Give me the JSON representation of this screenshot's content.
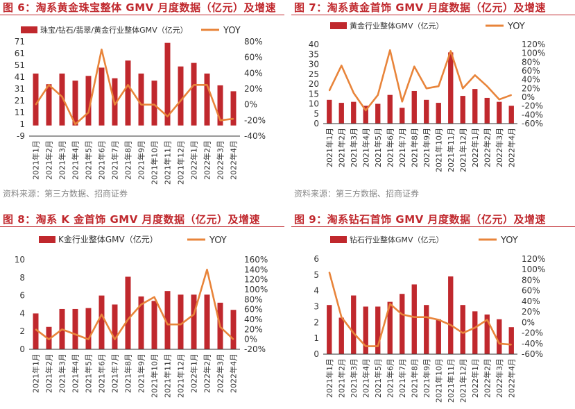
{
  "colors": {
    "bar": "#c0282d",
    "line": "#e8843a",
    "title": "#c0282d",
    "axis": "#333333"
  },
  "charts": [
    {
      "title": "图 6：淘系黄金珠宝整体 GMV 月度数据（亿元）及增速",
      "source": "资料来源：第三方数据、招商证券",
      "chart_data": {
        "type": "bar+line",
        "categories": [
          "2021年1月",
          "2021年2月",
          "2021年3月",
          "2021年4月",
          "2021年5月",
          "2021年6月",
          "2021年7月",
          "2021年8月",
          "2021年9月",
          "2021年10月",
          "2021年11月",
          "2021年12月",
          "2022年1月",
          "2022年2月",
          "2022年3月",
          "2022年4月"
        ],
        "series": [
          {
            "name": "珠宝/钻石/翡翠/黄金行业整体GMV（亿元）",
            "type": "bar",
            "axis": "left",
            "values": [
              44,
              35,
              44,
              38,
              42,
              49,
              40,
              55,
              44,
              38,
              70,
              50,
              53,
              44,
              34,
              29
            ]
          },
          {
            "name": "YOY",
            "type": "line",
            "axis": "right",
            "values": [
              0,
              25,
              10,
              -25,
              -10,
              70,
              0,
              25,
              0,
              0,
              -15,
              5,
              25,
              25,
              -20,
              -18
            ]
          }
        ],
        "yleft": {
          "min": -9,
          "max": 71,
          "ticks": [
            71,
            61,
            51,
            41,
            31,
            21,
            11,
            1,
            -9
          ],
          "labels": [
            "71",
            "61",
            "51",
            "41",
            "31",
            "21",
            "11",
            "1",
            "-9"
          ]
        },
        "yright": {
          "min": -40,
          "max": 80,
          "ticks": [
            80,
            60,
            40,
            20,
            0,
            -20,
            -40
          ],
          "labels": [
            "80%",
            "60%",
            "40%",
            "20%",
            "0%",
            "-20%",
            "-40%"
          ]
        },
        "legend": "top"
      }
    },
    {
      "title": "图 7：淘系黄金首饰 GMV 月度数据（亿元）及增速",
      "source": "资料来源：第三方数据、招商证券",
      "chart_data": {
        "type": "bar+line",
        "categories": [
          "2021年1月",
          "2021年2月",
          "2021年3月",
          "2021年4月",
          "2021年5月",
          "2021年6月",
          "2021年7月",
          "2021年8月",
          "2021年9月",
          "2021年10月",
          "2021年11月",
          "2021年12月",
          "2022年1月",
          "2022年2月",
          "2022年3月",
          "2022年4月"
        ],
        "series": [
          {
            "name": "黄金行业整体GMV（亿元）",
            "type": "bar",
            "axis": "left",
            "values": [
              12,
              10.5,
              11,
              9,
              10,
              14.5,
              8,
              16.5,
              12,
              10.5,
              36,
              14,
              17.5,
              13,
              11,
              9
            ]
          },
          {
            "name": "YOY",
            "type": "line",
            "axis": "right",
            "values": [
              15,
              72,
              10,
              -30,
              5,
              107,
              -10,
              70,
              20,
              25,
              105,
              20,
              50,
              25,
              -5,
              5
            ]
          }
        ],
        "yleft": {
          "min": 0,
          "max": 40,
          "ticks": [
            40,
            35,
            30,
            25,
            20,
            15,
            10,
            5,
            0
          ],
          "labels": [
            "40",
            "35",
            "30",
            "25",
            "20",
            "15",
            "10",
            "5",
            "0"
          ]
        },
        "yright": {
          "min": -60,
          "max": 120,
          "ticks": [
            120,
            100,
            80,
            60,
            40,
            20,
            0,
            -20,
            -40,
            -60
          ],
          "labels": [
            "120%",
            "100%",
            "80%",
            "60%",
            "40%",
            "20%",
            "0%",
            "-20%",
            "-40%",
            "-60%"
          ]
        },
        "legend": "top"
      }
    },
    {
      "title": "图 8：淘系 K 金首饰 GMV 月度数据（亿元）及增速",
      "source": "",
      "chart_data": {
        "type": "bar+line",
        "categories": [
          "2021年1月",
          "2021年2月",
          "2021年3月",
          "2021年4月",
          "2021年5月",
          "2021年6月",
          "2021年7月",
          "2021年8月",
          "2021年9月",
          "2021年10月",
          "2021年11月",
          "2021年12月",
          "2022年1月",
          "2022年2月",
          "2022年3月",
          "2022年4月"
        ],
        "series": [
          {
            "name": "K金行业整体GMV（亿元）",
            "type": "bar",
            "axis": "left",
            "values": [
              4,
              2.5,
              4.5,
              4.5,
              4.6,
              6,
              5,
              8.1,
              5.9,
              5.4,
              6.5,
              6.1,
              6.1,
              6.1,
              5.2,
              4.4
            ]
          },
          {
            "name": "YOY",
            "type": "line",
            "axis": "right",
            "values": [
              20,
              0,
              20,
              10,
              0,
              50,
              0,
              40,
              70,
              85,
              30,
              30,
              50,
              140,
              25,
              0
            ]
          }
        ],
        "yleft": {
          "min": 0,
          "max": 10,
          "ticks": [
            10,
            8,
            6,
            4,
            2,
            0
          ],
          "labels": [
            "10",
            "8",
            "6",
            "4",
            "2",
            "0"
          ]
        },
        "yright": {
          "min": -20,
          "max": 160,
          "ticks": [
            160,
            140,
            120,
            100,
            80,
            60,
            40,
            20,
            0,
            -20
          ],
          "labels": [
            "160%",
            "140%",
            "120%",
            "100%",
            "80%",
            "60%",
            "40%",
            "20%",
            "0%",
            "-20%"
          ]
        },
        "legend": "top"
      }
    },
    {
      "title": "图 9：淘系钻石首饰 GMV 月度数据（亿元）及增速",
      "source": "",
      "chart_data": {
        "type": "bar+line",
        "categories": [
          "2021年1月",
          "2021年2月",
          "2021年3月",
          "2021年4月",
          "2021年5月",
          "2021年6月",
          "2021年7月",
          "2021年8月",
          "2021年9月",
          "2021年10月",
          "2021年11月",
          "2021年12月",
          "2022年1月",
          "2022年2月",
          "2022年3月",
          "2022年4月"
        ],
        "series": [
          {
            "name": "钻石行业整体GMV（亿元）",
            "type": "bar",
            "axis": "left",
            "values": [
              3.1,
              2.3,
              3.7,
              3,
              3,
              3.3,
              3.8,
              4.4,
              3.1,
              2.2,
              4.9,
              3.1,
              2.7,
              2.5,
              2.2,
              1.7
            ]
          },
          {
            "name": "YOY",
            "type": "line",
            "axis": "right",
            "values": [
              95,
              10,
              -20,
              -45,
              -45,
              35,
              15,
              10,
              10,
              5,
              -5,
              -20,
              -10,
              5,
              -40,
              -42
            ]
          }
        ],
        "yleft": {
          "min": 0,
          "max": 6,
          "ticks": [
            6,
            5,
            4,
            3,
            2,
            1,
            0
          ],
          "labels": [
            "6",
            "5",
            "4",
            "3",
            "2",
            "1",
            "0"
          ]
        },
        "yright": {
          "min": -60,
          "max": 120,
          "ticks": [
            120,
            100,
            80,
            60,
            40,
            20,
            0,
            -20,
            -40,
            -60
          ],
          "labels": [
            "120%",
            "100%",
            "80%",
            "60%",
            "40%",
            "20%",
            "0%",
            "-20%",
            "-40%",
            "-60%"
          ]
        },
        "legend": "top"
      }
    }
  ]
}
